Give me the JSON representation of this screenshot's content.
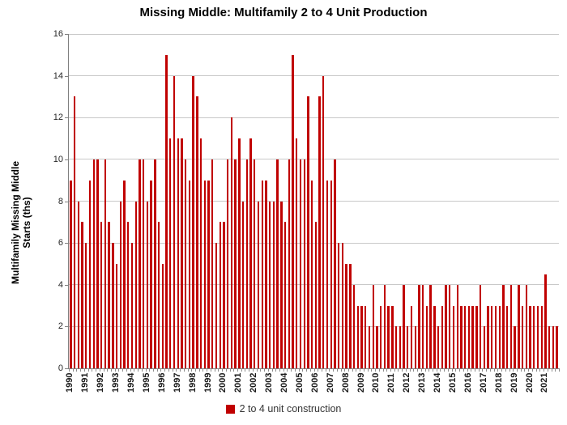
{
  "page": {
    "title": "Missing Middle: Multifamily 2 to 4 Unit Production"
  },
  "legend": {
    "label": "2 to 4 unit construction",
    "swatch_color": "#c00000"
  },
  "chart_data": {
    "type": "bar",
    "title": "Missing Middle: Multifamily 2 to 4 Unit Production",
    "ylabel": "Multifamily Missing Middle Starts (ths)",
    "ylabel_lines": [
      "Multifamily Missing Middle",
      "Starts (ths)"
    ],
    "xlabel": "",
    "ylim": [
      0,
      16
    ],
    "yticks": [
      0,
      2,
      4,
      6,
      8,
      10,
      12,
      14,
      16
    ],
    "grid": "horizontal",
    "grid_color": "#c9c9c9",
    "bar_color": "#c00000",
    "legend_position": "bottom",
    "frequency": "quarterly",
    "x_label_interval": 4,
    "categories": [
      "1990",
      "1991",
      "1992",
      "1993",
      "1994",
      "1995",
      "1996",
      "1997",
      "1998",
      "1999",
      "2000",
      "2001",
      "2002",
      "2003",
      "2004",
      "2005",
      "2006",
      "2007",
      "2008",
      "2009",
      "2010",
      "2011",
      "2012",
      "2013",
      "2014",
      "2015",
      "2016",
      "2017",
      "2018",
      "2019",
      "2020",
      "2021"
    ],
    "series": [
      {
        "name": "2 to 4 unit construction",
        "values": [
          9,
          13,
          8,
          7,
          6,
          9,
          10,
          10,
          7,
          10,
          7,
          6,
          5,
          8,
          9,
          7,
          6,
          8,
          10,
          10,
          8,
          9,
          10,
          7,
          5,
          15,
          11,
          14,
          11,
          11,
          10,
          9,
          14,
          13,
          11,
          9,
          9,
          10,
          6,
          7,
          7,
          10,
          12,
          10,
          11,
          8,
          10,
          11,
          10,
          8,
          9,
          9,
          8,
          8,
          10,
          8,
          7,
          10,
          15,
          11,
          10,
          10,
          13,
          9,
          7,
          13,
          14,
          9,
          9,
          10,
          6,
          6,
          5,
          5,
          4,
          3,
          3,
          3,
          2,
          4,
          2,
          3,
          4,
          3,
          3,
          2,
          2,
          4,
          2,
          3,
          2,
          4,
          4,
          3,
          4,
          3,
          2,
          3,
          4,
          4,
          3,
          4,
          3,
          3,
          3,
          3,
          3,
          4,
          2,
          3,
          3,
          3,
          3,
          4,
          3,
          4,
          2,
          4,
          3,
          4,
          3,
          3,
          3,
          3,
          4.5,
          2,
          2,
          2
        ]
      }
    ]
  }
}
